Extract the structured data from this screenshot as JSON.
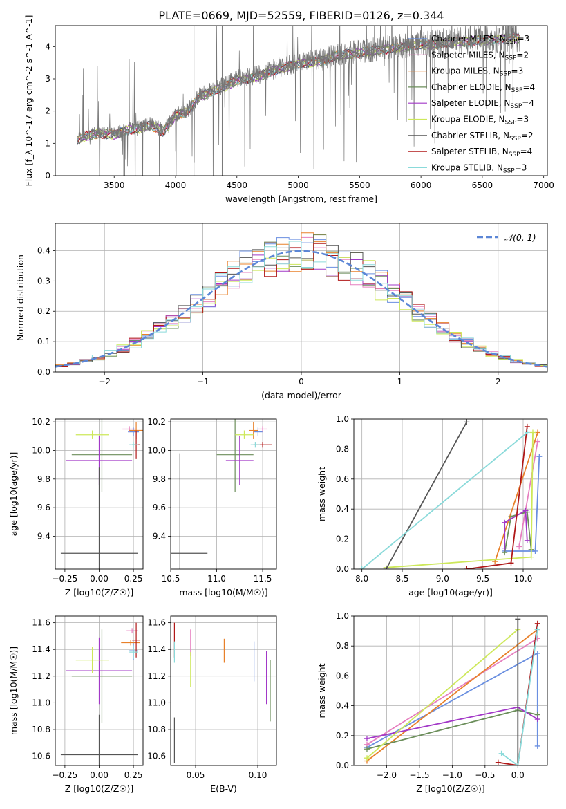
{
  "figure_title": "PLATE=0669, MJD=52559, FIBERID=0126, z=0.344",
  "models": [
    {
      "name": "Chabrier MILES",
      "nssp": 3,
      "color": "#6a8fe0"
    },
    {
      "name": "Salpeter MILES",
      "nssp": 2,
      "color": "#e67fbf"
    },
    {
      "name": "Kroupa MILES",
      "nssp": 3,
      "color": "#e8802a"
    },
    {
      "name": "Chabrier ELODIE",
      "nssp": 4,
      "color": "#6b8e5a"
    },
    {
      "name": "Salpeter ELODIE",
      "nssp": 4,
      "color": "#a238c7"
    },
    {
      "name": "Kroupa ELODIE",
      "nssp": 3,
      "color": "#cde85a"
    },
    {
      "name": "Chabrier STELIB",
      "nssp": 2,
      "color": "#555555"
    },
    {
      "name": "Salpeter STELIB",
      "nssp": 4,
      "color": "#b01818"
    },
    {
      "name": "Kroupa STELIB",
      "nssp": 3,
      "color": "#8adada"
    }
  ],
  "chart_data": [
    {
      "type": "line",
      "id": "spectrum",
      "xlabel": "wavelength [Angstrom, rest frame]",
      "ylabel": "Flux [f_λ 10^-17 erg cm^-2 s^-1 A^-1]",
      "xlim": [
        3020,
        7030
      ],
      "ylim": [
        0,
        4.65
      ],
      "xticks": [
        3500,
        4000,
        4500,
        5000,
        5500,
        6000,
        6500,
        7000
      ],
      "yticks": [
        0,
        1,
        2,
        3,
        4
      ],
      "data_range": [
        3200,
        6810
      ],
      "continuum_x": [
        3200,
        3300,
        3400,
        3500,
        3600,
        3700,
        3800,
        3900,
        4000,
        4100,
        4200,
        4300,
        4400,
        4500,
        4600,
        4700,
        4800,
        4900,
        5000,
        5100,
        5200,
        5300,
        5400,
        5500,
        5600,
        5700,
        5800,
        5900,
        6000,
        6100,
        6200,
        6300,
        6400,
        6500,
        6600,
        6700,
        6810
      ],
      "continuum_y": [
        1.15,
        1.3,
        1.35,
        1.3,
        1.45,
        1.5,
        1.6,
        1.4,
        1.9,
        2.05,
        2.5,
        2.65,
        2.8,
        3.0,
        3.05,
        3.15,
        3.3,
        3.4,
        3.5,
        3.55,
        3.6,
        3.75,
        3.8,
        3.85,
        3.9,
        3.95,
        4.0,
        4.05,
        4.1,
        4.1,
        4.15,
        4.2,
        4.2,
        4.25,
        4.25,
        4.3,
        4.3
      ],
      "legend_location": "upper right"
    },
    {
      "type": "line",
      "id": "residuals",
      "xlabel": "(data-model)/error",
      "ylabel": "Normed distribution",
      "xlim": [
        -2.5,
        2.5
      ],
      "ylim": [
        0,
        0.49
      ],
      "xticks": [
        -2,
        -1,
        0,
        1,
        2
      ],
      "yticks": [
        0.0,
        0.1,
        0.2,
        0.3,
        0.4
      ],
      "reference_curve": "𝒩(0, 1)",
      "reference_color": "#5b86d6",
      "bins": 40,
      "grid": true
    },
    {
      "type": "scatter",
      "id": "age_vs_Z",
      "xlabel": "Z [log10(Z/Z☉)]",
      "ylabel": "age  [log10(age/yr)]",
      "xlim": [
        -0.32,
        0.32
      ],
      "ylim": [
        9.17,
        10.22
      ],
      "xticks": [
        -0.25,
        0.0,
        0.25
      ],
      "yticks": [
        9.4,
        9.6,
        9.8,
        10.0,
        10.2
      ],
      "points": [
        {
          "model": 0,
          "x": 0.25,
          "xerr": 0.04,
          "y": 10.13,
          "yerr": 0.03
        },
        {
          "model": 1,
          "x": 0.22,
          "xerr": 0.05,
          "y": 10.15,
          "yerr": 0.02
        },
        {
          "model": 2,
          "x": 0.27,
          "xerr": 0.05,
          "y": 10.14,
          "yerr": 0.06
        },
        {
          "model": 3,
          "x": 0.02,
          "xerr": 0.22,
          "y": 9.97,
          "yerr": 0.26
        },
        {
          "model": 4,
          "x": 0.0,
          "xerr": 0.24,
          "y": 9.93,
          "yerr": 0.17
        },
        {
          "model": 5,
          "x": -0.05,
          "xerr": 0.12,
          "y": 10.11,
          "yerr": 0.03
        },
        {
          "model": 6,
          "x": 0.0,
          "xerr": 0.28,
          "y": 9.28,
          "yerr": 0.6
        },
        {
          "model": 7,
          "x": 0.27,
          "xerr": 0.03,
          "y": 10.04,
          "yerr": 0.1
        },
        {
          "model": 8,
          "x": 0.25,
          "xerr": 0.03,
          "y": 10.04,
          "yerr": 0.02
        }
      ]
    },
    {
      "type": "scatter",
      "id": "age_vs_mass",
      "xlabel": "mass [log10(M/M☉)]",
      "ylabel": "",
      "xlim": [
        10.5,
        11.65
      ],
      "ylim": [
        9.17,
        10.22
      ],
      "xticks": [
        10.5,
        11.0,
        11.5
      ],
      "yticks": [
        9.4,
        9.6,
        9.8,
        10.0,
        10.2
      ],
      "points": [
        {
          "model": 0,
          "x": 11.45,
          "xerr": 0.05,
          "y": 10.13,
          "yerr": 0.03
        },
        {
          "model": 1,
          "x": 11.5,
          "xerr": 0.05,
          "y": 10.15,
          "yerr": 0.02
        },
        {
          "model": 2,
          "x": 11.4,
          "xerr": 0.05,
          "y": 10.14,
          "yerr": 0.06
        },
        {
          "model": 3,
          "x": 11.2,
          "xerr": 0.2,
          "y": 9.97,
          "yerr": 0.26
        },
        {
          "model": 4,
          "x": 11.25,
          "xerr": 0.15,
          "y": 9.93,
          "yerr": 0.17
        },
        {
          "model": 5,
          "x": 11.3,
          "xerr": 0.1,
          "y": 10.11,
          "yerr": 0.03
        },
        {
          "model": 6,
          "x": 10.6,
          "xerr": 0.3,
          "y": 9.28,
          "yerr": 0.7
        },
        {
          "model": 7,
          "x": 11.5,
          "xerr": 0.1,
          "y": 10.04,
          "yerr": 0.02
        },
        {
          "model": 8,
          "x": 11.42,
          "xerr": 0.05,
          "y": 10.04,
          "yerr": 0.02
        }
      ]
    },
    {
      "type": "line",
      "id": "massweight_vs_age",
      "xlabel": "age  [log10(age/yr)]",
      "ylabel": "mass weight",
      "xlim": [
        7.9,
        10.3
      ],
      "ylim": [
        0,
        1
      ],
      "xticks": [
        8.0,
        8.5,
        9.0,
        9.5,
        10.0
      ],
      "yticks": [
        0.0,
        0.2,
        0.4,
        0.6,
        0.8,
        1.0
      ],
      "series": [
        {
          "model": 0,
          "x": [
            9.77,
            10.15,
            10.2
          ],
          "y": [
            0.12,
            0.12,
            0.75
          ]
        },
        {
          "model": 1,
          "x": [
            9.95,
            10.18
          ],
          "y": [
            0.15,
            0.85
          ]
        },
        {
          "model": 2,
          "x": [
            9.65,
            10.18
          ],
          "y": [
            0.05,
            0.91
          ]
        },
        {
          "model": 3,
          "x": [
            9.77,
            9.85,
            10.05,
            10.1
          ],
          "y": [
            0.11,
            0.35,
            0.38,
            0.13
          ]
        },
        {
          "model": 4,
          "x": [
            9.77,
            9.77,
            10.03,
            10.05
          ],
          "y": [
            0.14,
            0.31,
            0.39,
            0.19
          ]
        },
        {
          "model": 5,
          "x": [
            8.3,
            10.1,
            10.12
          ],
          "y": [
            0.01,
            0.08,
            0.91
          ]
        },
        {
          "model": 6,
          "x": [
            8.3,
            9.3
          ],
          "y": [
            0.0,
            0.98
          ]
        },
        {
          "model": 7,
          "x": [
            9.3,
            9.85,
            10.05
          ],
          "y": [
            0.0,
            0.04,
            0.95
          ]
        },
        {
          "model": 8,
          "x": [
            8.0,
            10.05
          ],
          "y": [
            0.0,
            0.91
          ]
        }
      ]
    },
    {
      "type": "scatter",
      "id": "mass_vs_Z",
      "xlabel": "Z [log10(Z/Z☉)]",
      "ylabel": "mass [log10(M/M☉)]",
      "xlim": [
        -0.32,
        0.32
      ],
      "ylim": [
        10.53,
        11.65
      ],
      "xticks": [
        -0.25,
        0.0,
        0.25
      ],
      "yticks": [
        10.6,
        10.8,
        11.0,
        11.2,
        11.4,
        11.6
      ],
      "points": [
        {
          "model": 0,
          "x": 0.25,
          "xerr": 0.03,
          "y": 11.39,
          "yerr": 0.07
        },
        {
          "model": 1,
          "x": 0.24,
          "xerr": 0.04,
          "y": 11.54,
          "yerr": 0.02
        },
        {
          "model": 2,
          "x": 0.23,
          "xerr": 0.07,
          "y": 11.45,
          "yerr": 0.02
        },
        {
          "model": 3,
          "x": 0.02,
          "xerr": 0.22,
          "y": 11.2,
          "yerr": 0.35
        },
        {
          "model": 4,
          "x": 0.0,
          "xerr": 0.24,
          "y": 11.24,
          "yerr": 0.25
        },
        {
          "model": 5,
          "x": -0.05,
          "xerr": 0.12,
          "y": 11.32,
          "yerr": 0.1
        },
        {
          "model": 6,
          "x": 0.0,
          "xerr": 0.28,
          "y": 10.61,
          "yerr": 0.3
        },
        {
          "model": 7,
          "x": 0.27,
          "xerr": 0.03,
          "y": 11.47,
          "yerr": 0.13
        },
        {
          "model": 8,
          "x": 0.25,
          "xerr": 0.03,
          "y": 11.38,
          "yerr": 0.05
        }
      ]
    },
    {
      "type": "scatter",
      "id": "mass_vs_EBV",
      "xlabel": "E(B-V)",
      "ylabel": "",
      "xlim": [
        0.03,
        0.115
      ],
      "ylim": [
        10.53,
        11.65
      ],
      "xticks": [
        0.05,
        0.1
      ],
      "yticks": [
        10.6,
        10.8,
        11.0,
        11.2,
        11.4,
        11.6
      ],
      "points": [
        {
          "model": 0,
          "x": 0.097,
          "y": 11.31,
          "yerr": 0.15
        },
        {
          "model": 1,
          "x": 0.046,
          "y": 11.45,
          "yerr": 0.1
        },
        {
          "model": 2,
          "x": 0.073,
          "y": 11.39,
          "yerr": 0.09
        },
        {
          "model": 3,
          "x": 0.11,
          "y": 11.09,
          "yerr": 0.23
        },
        {
          "model": 4,
          "x": 0.107,
          "y": 11.19,
          "yerr": 0.2
        },
        {
          "model": 5,
          "x": 0.046,
          "y": 11.25,
          "yerr": 0.13
        },
        {
          "model": 6,
          "x": 0.033,
          "y": 10.72,
          "yerr": 0.17
        },
        {
          "model": 7,
          "x": 0.033,
          "y": 11.47,
          "yerr": 0.13
        },
        {
          "model": 8,
          "x": 0.033,
          "y": 11.38,
          "yerr": 0.08
        }
      ]
    },
    {
      "type": "line",
      "id": "massweight_vs_Z",
      "xlabel": "Z [log10(Z/Z☉)]",
      "ylabel": "mass weight",
      "xlim": [
        -2.5,
        0.45
      ],
      "ylim": [
        0,
        1
      ],
      "xticks": [
        -2.0,
        -1.5,
        -1.0,
        -0.5,
        0.0
      ],
      "yticks": [
        0.0,
        0.2,
        0.4,
        0.6,
        0.8,
        1.0
      ],
      "series": [
        {
          "model": 0,
          "x": [
            -2.3,
            0.3,
            0.3
          ],
          "y": [
            0.12,
            0.75,
            0.13
          ]
        },
        {
          "model": 1,
          "x": [
            -2.3,
            0.3
          ],
          "y": [
            0.14,
            0.85
          ]
        },
        {
          "model": 2,
          "x": [
            -2.3,
            0.3
          ],
          "y": [
            0.03,
            0.91
          ]
        },
        {
          "model": 3,
          "x": [
            -2.3,
            0.0,
            0.3
          ],
          "y": [
            0.11,
            0.37,
            0.34
          ]
        },
        {
          "model": 4,
          "x": [
            -2.3,
            0.0,
            0.3
          ],
          "y": [
            0.18,
            0.39,
            0.31
          ]
        },
        {
          "model": 5,
          "x": [
            -2.3,
            0.0
          ],
          "y": [
            0.05,
            0.91
          ]
        },
        {
          "model": 6,
          "x": [
            0.0,
            0.0
          ],
          "y": [
            0.0,
            0.98
          ]
        },
        {
          "model": 7,
          "x": [
            -0.3,
            0.0,
            0.3
          ],
          "y": [
            0.02,
            0.0,
            0.95
          ]
        },
        {
          "model": 8,
          "x": [
            -0.25,
            0.0,
            0.3
          ],
          "y": [
            0.08,
            0.0,
            0.91
          ]
        }
      ]
    }
  ]
}
